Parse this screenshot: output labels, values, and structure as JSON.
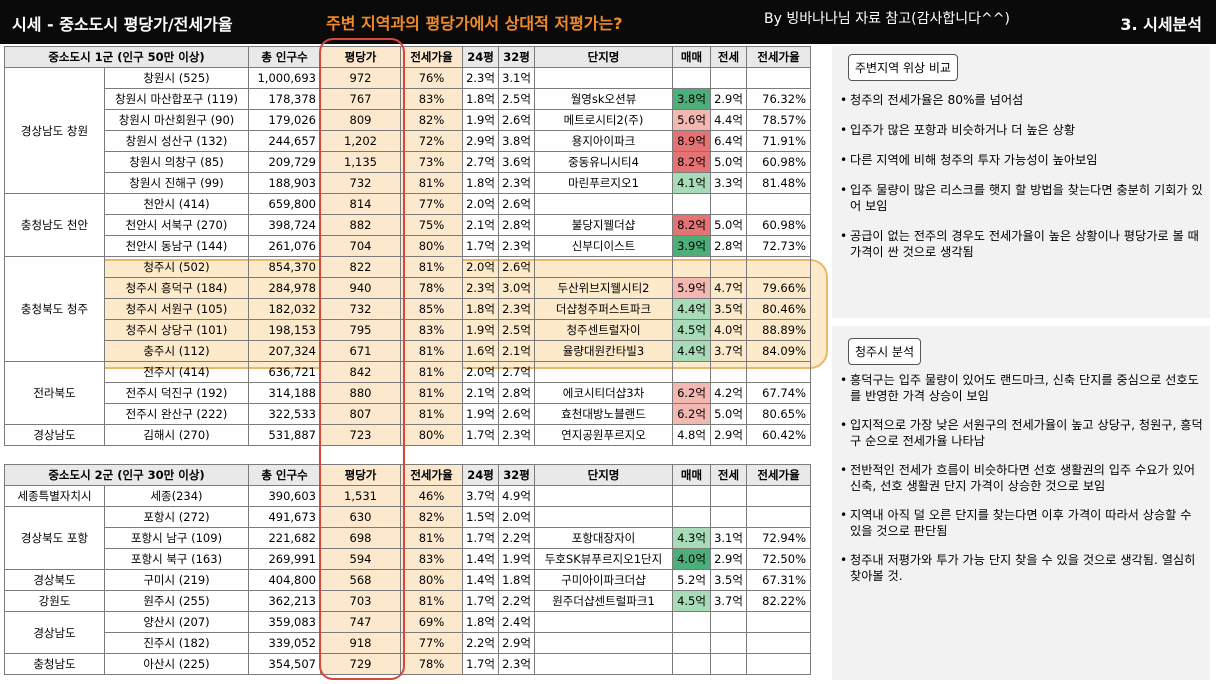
{
  "header": {
    "title": "시세 - 중소도시 평당가/전세가율",
    "subtitle": "주변 지역과의 평당가에서 상대적 저평가는?",
    "credit": "By 빙바나나님 자료 참고(감사합니다^^)",
    "section": "3. 시세분석"
  },
  "table1": {
    "title": "중소도시 1군 (인구 50만 이상)",
    "headers": [
      "총 인구수",
      "평당가",
      "전세가율",
      "24평",
      "32평",
      "단지명",
      "매매",
      "전세",
      "전세가율"
    ],
    "regions": [
      "경상남도 창원",
      "충청남도 천안",
      "충청북도 청주",
      "전라북도",
      "경상남도"
    ],
    "rows": [
      {
        "city": "창원시 (525)",
        "pop": "1,000,693",
        "price": "972",
        "ratio": "76%",
        "p24": "2.3억",
        "p32": "3.1억",
        "complex": "",
        "sale": "",
        "jeonse": "",
        "jratio": "",
        "sc": ""
      },
      {
        "city": "창원시 마산합포구 (119)",
        "pop": "178,378",
        "price": "767",
        "ratio": "83%",
        "p24": "1.8억",
        "p32": "2.5억",
        "complex": "월영sk오션뷰",
        "sale": "3.8억",
        "jeonse": "2.9억",
        "jratio": "76.32%",
        "sc": "green"
      },
      {
        "city": "창원시 마산회원구 (90)",
        "pop": "179,026",
        "price": "809",
        "ratio": "82%",
        "p24": "1.9억",
        "p32": "2.6억",
        "complex": "메트로시티2(주)",
        "sale": "5.6억",
        "jeonse": "4.4억",
        "jratio": "78.57%",
        "sc": "pink"
      },
      {
        "city": "창원시 성산구 (132)",
        "pop": "244,657",
        "price": "1,202",
        "ratio": "72%",
        "p24": "2.9억",
        "p32": "3.8억",
        "complex": "용지아이파크",
        "sale": "8.9억",
        "jeonse": "6.4억",
        "jratio": "71.91%",
        "sc": "red"
      },
      {
        "city": "창원시 의창구 (85)",
        "pop": "209,729",
        "price": "1,135",
        "ratio": "73%",
        "p24": "2.7억",
        "p32": "3.6억",
        "complex": "중동유니시티4",
        "sale": "8.2억",
        "jeonse": "5.0억",
        "jratio": "60.98%",
        "sc": "red"
      },
      {
        "city": "창원시 진해구 (99)",
        "pop": "188,903",
        "price": "732",
        "ratio": "81%",
        "p24": "1.8억",
        "p32": "2.3억",
        "complex": "마린푸르지오1",
        "sale": "4.1억",
        "jeonse": "3.3억",
        "jratio": "81.48%",
        "sc": "lgreen"
      },
      {
        "city": "천안시 (414)",
        "pop": "659,800",
        "price": "814",
        "ratio": "77%",
        "p24": "2.0억",
        "p32": "2.6억",
        "complex": "",
        "sale": "",
        "jeonse": "",
        "jratio": "",
        "sc": ""
      },
      {
        "city": "천안시 서북구 (270)",
        "pop": "398,724",
        "price": "882",
        "ratio": "75%",
        "p24": "2.1억",
        "p32": "2.8억",
        "complex": "불당지웰더샵",
        "sale": "8.2억",
        "jeonse": "5.0억",
        "jratio": "60.98%",
        "sc": "red"
      },
      {
        "city": "천안시 동남구 (144)",
        "pop": "261,076",
        "price": "704",
        "ratio": "80%",
        "p24": "1.7억",
        "p32": "2.3억",
        "complex": "신부디이스트",
        "sale": "3.9억",
        "jeonse": "2.8억",
        "jratio": "72.73%",
        "sc": "green"
      },
      {
        "city": "청주시 (502)",
        "pop": "854,370",
        "price": "822",
        "ratio": "81%",
        "p24": "2.0억",
        "p32": "2.6억",
        "complex": "",
        "sale": "",
        "jeonse": "",
        "jratio": "",
        "sc": ""
      },
      {
        "city": "청주시 흥덕구 (184)",
        "pop": "284,978",
        "price": "940",
        "ratio": "78%",
        "p24": "2.3억",
        "p32": "3.0억",
        "complex": "두산위브지웰시티2",
        "sale": "5.9억",
        "jeonse": "4.7억",
        "jratio": "79.66%",
        "sc": "pink"
      },
      {
        "city": "청주시 서원구 (105)",
        "pop": "182,032",
        "price": "732",
        "ratio": "85%",
        "p24": "1.8억",
        "p32": "2.3억",
        "complex": "더샵청주퍼스트파크",
        "sale": "4.4억",
        "jeonse": "3.5억",
        "jratio": "80.46%",
        "sc": "lgreen"
      },
      {
        "city": "청주시 상당구 (101)",
        "pop": "198,153",
        "price": "795",
        "ratio": "83%",
        "p24": "1.9억",
        "p32": "2.5억",
        "complex": "청주센트럴자이",
        "sale": "4.5억",
        "jeonse": "4.0억",
        "jratio": "88.89%",
        "sc": "lgreen"
      },
      {
        "city": "충주시 (112)",
        "pop": "207,324",
        "price": "671",
        "ratio": "81%",
        "p24": "1.6억",
        "p32": "2.1억",
        "complex": "율량대원칸타빌3",
        "sale": "4.4억",
        "jeonse": "3.7억",
        "jratio": "84.09%",
        "sc": "lgreen"
      },
      {
        "city": "전주시 (414)",
        "pop": "636,721",
        "price": "842",
        "ratio": "81%",
        "p24": "2.0억",
        "p32": "2.7억",
        "complex": "",
        "sale": "",
        "jeonse": "",
        "jratio": "",
        "sc": ""
      },
      {
        "city": "전주시 덕진구 (192)",
        "pop": "314,188",
        "price": "880",
        "ratio": "81%",
        "p24": "2.1억",
        "p32": "2.8억",
        "complex": "에코시티더샵3차",
        "sale": "6.2억",
        "jeonse": "4.2억",
        "jratio": "67.74%",
        "sc": "pink"
      },
      {
        "city": "전주시 완산구 (222)",
        "pop": "322,533",
        "price": "807",
        "ratio": "81%",
        "p24": "1.9억",
        "p32": "2.6억",
        "complex": "효천대방노블랜드",
        "sale": "6.2억",
        "jeonse": "5.0억",
        "jratio": "80.65%",
        "sc": "pink"
      },
      {
        "city": "김해시 (270)",
        "pop": "531,887",
        "price": "723",
        "ratio": "80%",
        "p24": "1.7억",
        "p32": "2.3억",
        "complex": "연지공원푸르지오",
        "sale": "4.8억",
        "jeonse": "2.9억",
        "jratio": "60.42%",
        "sc": ""
      }
    ]
  },
  "table2": {
    "title": "중소도시 2군 (인구 30만 이상)",
    "headers": [
      "총 인구수",
      "평당가",
      "전세가율",
      "24평",
      "32평",
      "단지명",
      "매매",
      "전세",
      "전세가율"
    ],
    "regions": [
      "세종특별자치시",
      "경상북도 포항",
      "경상북도",
      "강원도",
      "경상남도",
      "충청남도"
    ],
    "rows": [
      {
        "city": "세종(234)",
        "pop": "390,603",
        "price": "1,531",
        "ratio": "46%",
        "p24": "3.7억",
        "p32": "4.9억",
        "complex": "",
        "sale": "",
        "jeonse": "",
        "jratio": "",
        "sc": ""
      },
      {
        "city": "포항시 (272)",
        "pop": "491,673",
        "price": "630",
        "ratio": "82%",
        "p24": "1.5억",
        "p32": "2.0억",
        "complex": "",
        "sale": "",
        "jeonse": "",
        "jratio": "",
        "sc": ""
      },
      {
        "city": "포항시 남구 (109)",
        "pop": "221,682",
        "price": "698",
        "ratio": "81%",
        "p24": "1.7억",
        "p32": "2.2억",
        "complex": "포항대장자이",
        "sale": "4.3억",
        "jeonse": "3.1억",
        "jratio": "72.94%",
        "sc": "lgreen"
      },
      {
        "city": "포항시 북구 (163)",
        "pop": "269,991",
        "price": "594",
        "ratio": "83%",
        "p24": "1.4억",
        "p32": "1.9억",
        "complex": "두호SK뷰푸르지오1단지",
        "sale": "4.0억",
        "jeonse": "2.9억",
        "jratio": "72.50%",
        "sc": "green"
      },
      {
        "city": "구미시 (219)",
        "pop": "404,800",
        "price": "568",
        "ratio": "80%",
        "p24": "1.4억",
        "p32": "1.8억",
        "complex": "구미아이파크더샵",
        "sale": "5.2억",
        "jeonse": "3.5억",
        "jratio": "67.31%",
        "sc": ""
      },
      {
        "city": "원주시 (255)",
        "pop": "362,213",
        "price": "703",
        "ratio": "81%",
        "p24": "1.7억",
        "p32": "2.2억",
        "complex": "원주더샵센트럴파크1",
        "sale": "4.5억",
        "jeonse": "3.7억",
        "jratio": "82.22%",
        "sc": "lgreen"
      },
      {
        "city": "양산시 (207)",
        "pop": "359,083",
        "price": "747",
        "ratio": "69%",
        "p24": "1.8억",
        "p32": "2.4억",
        "complex": "",
        "sale": "",
        "jeonse": "",
        "jratio": "",
        "sc": ""
      },
      {
        "city": "진주시 (182)",
        "pop": "339,052",
        "price": "918",
        "ratio": "77%",
        "p24": "2.2억",
        "p32": "2.9억",
        "complex": "",
        "sale": "",
        "jeonse": "",
        "jratio": "",
        "sc": ""
      },
      {
        "city": "아산시 (225)",
        "pop": "354,507",
        "price": "729",
        "ratio": "78%",
        "p24": "1.7억",
        "p32": "2.3억",
        "complex": "",
        "sale": "",
        "jeonse": "",
        "jratio": "",
        "sc": ""
      }
    ]
  },
  "panel1": {
    "tag": "주변지역 위상 비교",
    "items": [
      "청주의 전세가율은 80%를 넘어섬",
      "입주가 많은 포항과 비슷하거나 더 높은 상황",
      "다른 지역에 비해 청주의 투자 가능성이 높아보임",
      "입주 물량이 많은 리스크를 햇지 할 방법을 찾는다면 충분히 기회가 있어 보임",
      "공급이 없는 전주의 경우도 전세가율이 높은 상황이나 평당가로 볼 때 가격이 싼 것으로 생각됨"
    ]
  },
  "panel2": {
    "tag": "청주시 분석",
    "items": [
      "흥덕구는 입주 물량이 있어도 랜드마크, 신축 단지를 중심으로 선호도를 반영한 가격 상승이 보임",
      "입지적으로 가장 낮은 서원구의 전세가율이 높고 상당구, 청원구, 흥덕구 순으로 전세가율 나타남",
      "전반적인 전세가 흐름이 비슷하다면 선호 생활권의 입주 수요가 있어 신축, 선호 생활권 단지 가격이 상승한 것으로 보임",
      "지역내 아직 덜 오른 단지를 찾는다면 이후 가격이 따라서 상승할 수 있을 것으로 판단됨",
      "청주내 저평가와 투가 가능 단지 찾을 수 있을 것으로 생각됨. 열심히 찾아볼 것."
    ]
  }
}
